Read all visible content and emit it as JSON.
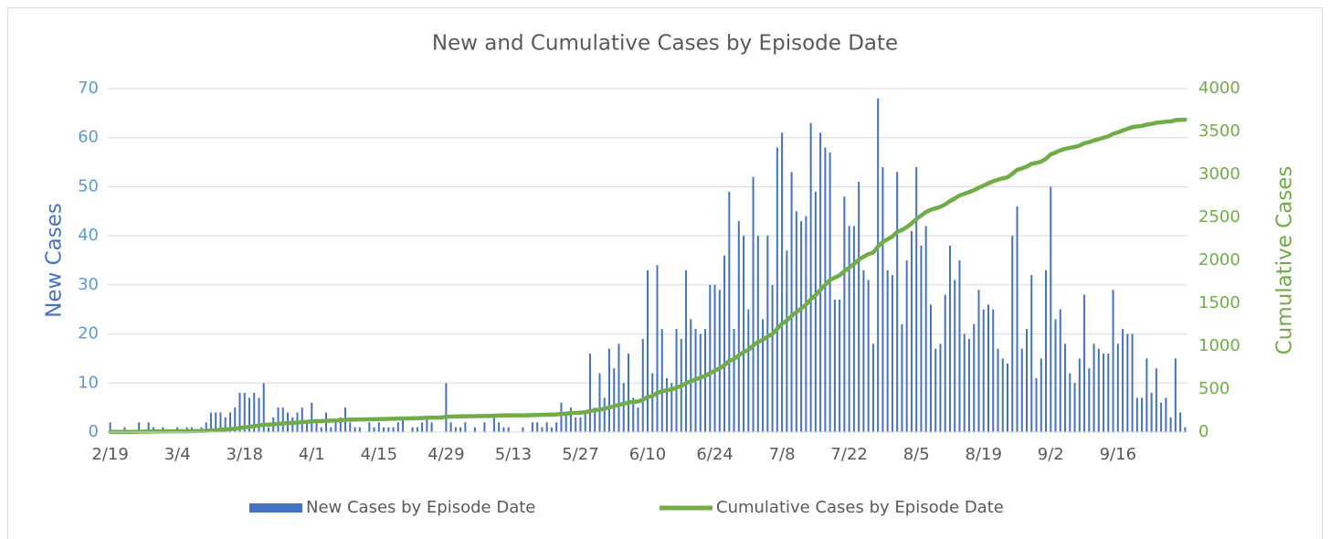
{
  "chart_data": {
    "type": "bar_line",
    "title": "New and Cumulative Cases by Episode Date",
    "y_label": "New Cases",
    "y2_label": "Cumulative Cases",
    "categories": [
      "2/19",
      null,
      null,
      null,
      null,
      null,
      null,
      null,
      null,
      null,
      null,
      null,
      null,
      null,
      "3/4",
      null,
      null,
      null,
      null,
      null,
      null,
      null,
      null,
      null,
      null,
      null,
      null,
      null,
      "3/18",
      null,
      null,
      null,
      null,
      null,
      null,
      null,
      null,
      null,
      null,
      null,
      null,
      null,
      "4/1",
      null,
      null,
      null,
      null,
      null,
      null,
      null,
      null,
      null,
      null,
      null,
      null,
      null,
      "4/15",
      null,
      null,
      null,
      null,
      null,
      null,
      null,
      null,
      null,
      null,
      null,
      null,
      null,
      "4/29",
      null,
      null,
      null,
      null,
      null,
      null,
      null,
      null,
      null,
      null,
      null,
      null,
      null,
      "5/13",
      null,
      null,
      null,
      null,
      null,
      null,
      null,
      null,
      null,
      null,
      null,
      null,
      null,
      "5/27",
      null,
      null,
      null,
      null,
      null,
      null,
      null,
      null,
      null,
      null,
      null,
      null,
      null,
      "6/10",
      null,
      null,
      null,
      null,
      null,
      null,
      null,
      null,
      null,
      null,
      null,
      null,
      null,
      "6/24",
      null,
      null,
      null,
      null,
      null,
      null,
      null,
      null,
      null,
      null,
      null,
      null,
      null,
      "7/8",
      null,
      null,
      null,
      null,
      null,
      null,
      null,
      null,
      null,
      null,
      null,
      null,
      null,
      "7/22",
      null,
      null,
      null,
      null,
      null,
      null,
      null,
      null,
      null,
      null,
      null,
      null,
      null,
      "8/5",
      null,
      null,
      null,
      null,
      null,
      null,
      null,
      null,
      null,
      null,
      null,
      null,
      null,
      "8/19",
      null,
      null,
      null,
      null,
      null,
      null,
      null,
      null,
      null,
      null,
      null,
      null,
      null,
      "9/2",
      null,
      null,
      null,
      null,
      null,
      null,
      null,
      null,
      null,
      null,
      null,
      null,
      null,
      "9/16",
      null,
      null,
      null,
      null,
      null,
      null,
      null,
      null,
      null,
      null,
      null,
      null,
      null,
      null
    ],
    "series": [
      {
        "name": "New Cases by Episode Date",
        "color": "#4472c4",
        "kind": "bar",
        "axis": "y",
        "values": [
          2,
          0,
          0,
          1,
          0,
          0,
          2,
          0,
          2,
          1,
          0,
          1,
          0,
          0,
          1,
          0,
          1,
          1,
          0,
          1,
          2,
          4,
          4,
          4,
          3,
          4,
          5,
          8,
          8,
          7,
          8,
          7,
          10,
          1,
          3,
          5,
          5,
          4,
          3,
          4,
          5,
          2,
          6,
          2,
          1,
          4,
          1,
          2,
          3,
          5,
          2,
          1,
          1,
          0,
          2,
          1,
          2,
          1,
          1,
          1,
          2,
          3,
          0,
          1,
          1,
          2,
          3,
          2,
          0,
          0,
          10,
          2,
          1,
          1,
          2,
          0,
          1,
          0,
          2,
          0,
          3,
          2,
          1,
          1,
          0,
          0,
          1,
          0,
          2,
          2,
          1,
          2,
          1,
          2,
          6,
          4,
          5,
          3,
          3,
          4,
          16,
          5,
          12,
          7,
          17,
          13,
          18,
          10,
          16,
          7,
          5,
          19,
          33,
          12,
          34,
          21,
          11,
          10,
          21,
          19,
          33,
          23,
          21,
          20,
          21,
          30,
          30,
          29,
          36,
          49,
          21,
          43,
          40,
          25,
          52,
          40,
          23,
          40,
          30,
          58,
          61,
          37,
          53,
          45,
          43,
          44,
          63,
          49,
          61,
          58,
          57,
          27,
          27,
          48,
          42,
          42,
          51,
          33,
          31,
          18,
          68,
          54,
          33,
          32,
          53,
          22,
          35,
          41,
          54,
          38,
          42,
          26,
          17,
          18,
          28,
          38,
          31,
          35,
          20,
          19,
          22,
          29,
          25,
          26,
          25,
          17,
          15,
          14,
          40,
          46,
          17,
          21,
          32,
          11,
          15,
          33,
          50,
          23,
          25,
          18,
          12,
          10,
          15,
          28,
          13,
          18,
          17,
          16,
          16,
          29,
          18,
          21,
          20,
          20,
          7,
          7,
          15,
          8,
          13,
          6,
          7,
          3,
          15,
          4,
          1
        ]
      },
      {
        "name": "Cumulative Cases by Episode Date",
        "color": "#70ad47",
        "kind": "line",
        "axis": "y2",
        "values": [
          2,
          2,
          2,
          3,
          3,
          3,
          5,
          5,
          7,
          8,
          8,
          9,
          9,
          9,
          10,
          10,
          11,
          12,
          12,
          13,
          15,
          19,
          23,
          27,
          30,
          34,
          39,
          47,
          55,
          62,
          70,
          77,
          87,
          88,
          91,
          96,
          101,
          105,
          108,
          112,
          117,
          119,
          125,
          127,
          128,
          132,
          133,
          135,
          138,
          143,
          145,
          146,
          147,
          147,
          149,
          150,
          152,
          153,
          154,
          155,
          157,
          160,
          160,
          161,
          162,
          164,
          167,
          169,
          169,
          169,
          179,
          181,
          182,
          183,
          185,
          185,
          186,
          186,
          188,
          188,
          191,
          193,
          194,
          195,
          195,
          195,
          196,
          196,
          198,
          200,
          201,
          203,
          204,
          206,
          212,
          216,
          221,
          224,
          227,
          231,
          247,
          252,
          264,
          271,
          288,
          301,
          319,
          329,
          345,
          352,
          357,
          376,
          409,
          421,
          455,
          476,
          487,
          497,
          518,
          537,
          570,
          593,
          614,
          634,
          655,
          685,
          715,
          744,
          780,
          829,
          850,
          893,
          933,
          958,
          1010,
          1050,
          1073,
          1113,
          1143,
          1201,
          1262,
          1299,
          1352,
          1397,
          1440,
          1484,
          1547,
          1596,
          1657,
          1715,
          1772,
          1799,
          1826,
          1874,
          1916,
          1958,
          2009,
          2042,
          2073,
          2091,
          2159,
          2213,
          2246,
          2278,
          2331,
          2353,
          2388,
          2429,
          2483,
          2521,
          2563,
          2589,
          2606,
          2624,
          2652,
          2690,
          2721,
          2756,
          2776,
          2795,
          2817,
          2846,
          2871,
          2897,
          2922,
          2939,
          2954,
          2968,
          3008,
          3054,
          3071,
          3092,
          3124,
          3135,
          3150,
          3183,
          3233,
          3256,
          3281,
          3299,
          3311,
          3321,
          3336,
          3364,
          3377,
          3395,
          3412,
          3428,
          3444,
          3473,
          3491,
          3512,
          3532,
          3552,
          3559,
          3566,
          3581,
          3589,
          3602,
          3608,
          3615,
          3618,
          3633,
          3637,
          3638
        ]
      }
    ],
    "ylim": [
      0,
      70
    ],
    "yticks": [
      0,
      10,
      20,
      30,
      40,
      50,
      60,
      70
    ],
    "y2lim": [
      0,
      4000
    ],
    "y2ticks": [
      0,
      500,
      1000,
      1500,
      2000,
      2500,
      3000,
      3500,
      4000
    ],
    "grid": true,
    "legend": "bottom"
  }
}
